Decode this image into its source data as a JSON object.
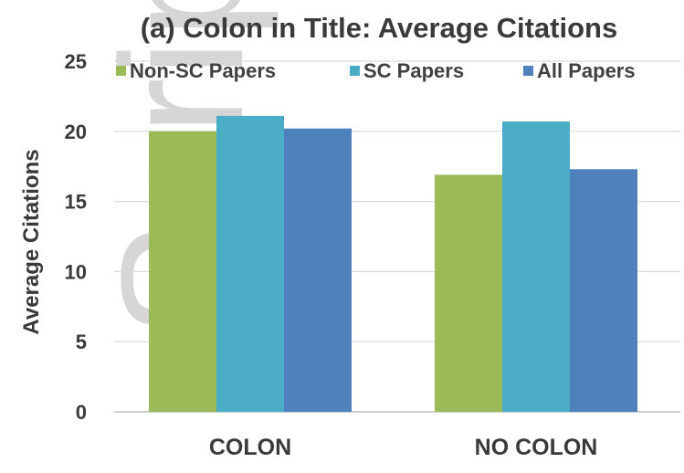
{
  "watermark": "Script",
  "chart_data": {
    "type": "bar",
    "title": "(a) Colon in Title: Average Citations",
    "ylabel": "Average Citations",
    "xlabel": "",
    "categories": [
      "COLON",
      "NO COLON"
    ],
    "series": [
      {
        "name": "Non-SC Papers",
        "color": "#9bbb59",
        "values": [
          20.0,
          16.9
        ]
      },
      {
        "name": "SC Papers",
        "color": "#4bacc6",
        "values": [
          21.1,
          20.7
        ]
      },
      {
        "name": "All Papers",
        "color": "#4f81bd",
        "values": [
          20.2,
          17.3
        ]
      }
    ],
    "ylim": [
      0,
      25
    ],
    "yticks": [
      0,
      5,
      10,
      15,
      20,
      25
    ],
    "grid": true,
    "legend": "top"
  }
}
